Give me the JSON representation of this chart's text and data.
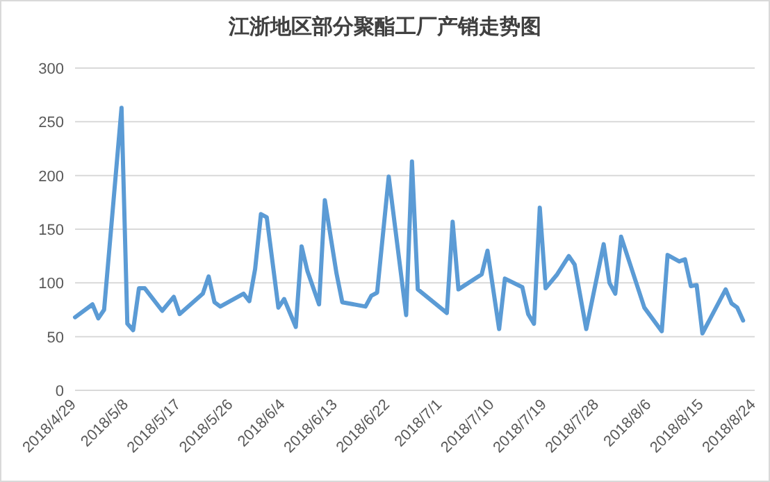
{
  "chart_data": {
    "type": "line",
    "title": "江浙地区部分聚酯工厂产销走势图",
    "x": [
      "2018-04-29",
      "2018-05-02",
      "2018-05-03",
      "2018-05-04",
      "2018-05-07",
      "2018-05-08",
      "2018-05-09",
      "2018-05-10",
      "2018-05-11",
      "2018-05-14",
      "2018-05-16",
      "2018-05-17",
      "2018-05-21",
      "2018-05-22",
      "2018-05-23",
      "2018-05-24",
      "2018-05-28",
      "2018-05-29",
      "2018-05-30",
      "2018-05-31",
      "2018-06-01",
      "2018-06-03",
      "2018-06-04",
      "2018-06-06",
      "2018-06-07",
      "2018-06-08",
      "2018-06-10",
      "2018-06-11",
      "2018-06-13",
      "2018-06-14",
      "2018-06-18",
      "2018-06-19",
      "2018-06-20",
      "2018-06-22",
      "2018-06-25",
      "2018-06-26",
      "2018-06-27",
      "2018-07-02",
      "2018-07-03",
      "2018-07-04",
      "2018-07-08",
      "2018-07-09",
      "2018-07-11",
      "2018-07-12",
      "2018-07-15",
      "2018-07-16",
      "2018-07-17",
      "2018-07-18",
      "2018-07-19",
      "2018-07-21",
      "2018-07-23",
      "2018-07-24",
      "2018-07-26",
      "2018-07-29",
      "2018-07-30",
      "2018-07-31",
      "2018-08-01",
      "2018-08-05",
      "2018-08-08",
      "2018-08-09",
      "2018-08-11",
      "2018-08-12",
      "2018-08-13",
      "2018-08-14",
      "2018-08-15",
      "2018-08-19",
      "2018-08-20",
      "2018-08-21",
      "2018-08-22"
    ],
    "series": [
      {
        "color": "#5b9bd5",
        "values": [
          68,
          80,
          67,
          75,
          263,
          62,
          56,
          95,
          95,
          74,
          87,
          71,
          90,
          106,
          82,
          78,
          90,
          83,
          113,
          164,
          161,
          77,
          85,
          59,
          134,
          111,
          80,
          177,
          109,
          82,
          78,
          88,
          91,
          199,
          70,
          213,
          94,
          72,
          157,
          94,
          108,
          130,
          57,
          104,
          96,
          71,
          62,
          170,
          95,
          108,
          125,
          117,
          57,
          136,
          100,
          90,
          143,
          77,
          55,
          126,
          120,
          122,
          97,
          98,
          53,
          94,
          81,
          77,
          65
        ]
      }
    ],
    "xlim": [
      "2018-04-29",
      "2018-08-24"
    ],
    "xticks": [
      {
        "value": "2018-04-29",
        "label": "2018/4/29"
      },
      {
        "value": "2018-05-08",
        "label": "2018/5/8"
      },
      {
        "value": "2018-05-17",
        "label": "2018/5/17"
      },
      {
        "value": "2018-05-26",
        "label": "2018/5/26"
      },
      {
        "value": "2018-06-04",
        "label": "2018/6/4"
      },
      {
        "value": "2018-06-13",
        "label": "2018/6/13"
      },
      {
        "value": "2018-06-22",
        "label": "2018/6/22"
      },
      {
        "value": "2018-07-01",
        "label": "2018/7/1"
      },
      {
        "value": "2018-07-10",
        "label": "2018/7/10"
      },
      {
        "value": "2018-07-19",
        "label": "2018/7/19"
      },
      {
        "value": "2018-07-28",
        "label": "2018/7/28"
      },
      {
        "value": "2018-08-06",
        "label": "2018/8/6"
      },
      {
        "value": "2018-08-15",
        "label": "2018/8/15"
      },
      {
        "value": "2018-08-24",
        "label": "2018/8/24"
      }
    ],
    "ylim": [
      0,
      300
    ],
    "yticks": [
      0,
      50,
      100,
      150,
      200,
      250,
      300
    ],
    "grid": "y",
    "marker": "none",
    "line_style": "solid"
  }
}
